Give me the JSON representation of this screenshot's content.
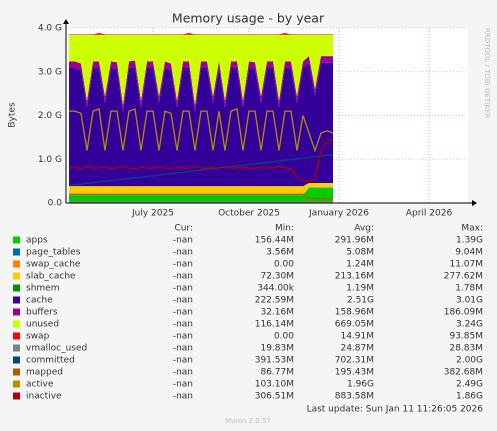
{
  "chart_data": {
    "type": "area",
    "title": "Memory usage - by year",
    "y_label": "Bytes",
    "side_note": "RRDTOOL / TOBI OETIKER",
    "last_update": "Last update: Sun Jan 11 11:26:05 2026",
    "footer": "Munin 2.0.57",
    "stat_headers": [
      "Cur:",
      "Min:",
      "Avg:",
      "Max:"
    ],
    "grid": true,
    "ylim": [
      0,
      4
    ],
    "yticks": [
      {
        "value": 0,
        "label": "0.0"
      },
      {
        "value": 1,
        "label": "1.0 G"
      },
      {
        "value": 2,
        "label": "2.0 G"
      },
      {
        "value": 3,
        "label": "3.0 G"
      },
      {
        "value": 4,
        "label": "4.0 G"
      }
    ],
    "categories": [
      null,
      null,
      null,
      null,
      null,
      null,
      null,
      null,
      null,
      null,
      null,
      null,
      null,
      null,
      "July 2025",
      null,
      null,
      null,
      null,
      null,
      null,
      null,
      null,
      null,
      null,
      null,
      null,
      null,
      null,
      null,
      "October 2025",
      null,
      null,
      null,
      null,
      null,
      null,
      null,
      null,
      null,
      null,
      null,
      null,
      null,
      null,
      "January 2026",
      null,
      null,
      null,
      null,
      null,
      null,
      null,
      null,
      null,
      null,
      null,
      null,
      null,
      null,
      "April 2026",
      null,
      null,
      null,
      null,
      null,
      null
    ],
    "series": [
      {
        "name": "apps",
        "color": "#00cc00",
        "style": "area",
        "stats": [
          "-nan",
          "156.44M",
          "291.96M",
          "1.39G"
        ],
        "values": [
          0.18,
          0.18,
          0.18,
          0.18,
          0.18,
          0.18,
          0.18,
          0.18,
          0.18,
          0.18,
          0.18,
          0.18,
          0.18,
          0.18,
          0.18,
          0.18,
          0.18,
          0.18,
          0.18,
          0.18,
          0.18,
          0.18,
          0.18,
          0.18,
          0.18,
          0.18,
          0.18,
          0.18,
          0.18,
          0.18,
          0.18,
          0.18,
          0.18,
          0.18,
          0.18,
          0.18,
          0.18,
          0.18,
          0.18,
          0.18,
          0.35,
          0.35,
          0.35,
          0.35,
          0.35,
          null,
          null,
          null,
          null,
          null,
          null,
          null,
          null,
          null,
          null,
          null,
          null,
          null,
          null,
          null,
          null,
          null,
          null,
          null,
          null,
          null,
          null
        ]
      },
      {
        "name": "page_tables",
        "color": "#0066b3",
        "style": "area",
        "stats": [
          "-nan",
          "3.56M",
          "5.08M",
          "9.04M"
        ],
        "values": [
          0.005,
          0.005,
          0.005,
          0.005,
          0.005,
          0.005,
          0.005,
          0.005,
          0.005,
          0.005,
          0.005,
          0.005,
          0.005,
          0.005,
          0.005,
          0.005,
          0.005,
          0.005,
          0.005,
          0.005,
          0.005,
          0.005,
          0.005,
          0.005,
          0.005,
          0.005,
          0.005,
          0.005,
          0.005,
          0.005,
          0.005,
          0.005,
          0.005,
          0.005,
          0.005,
          0.005,
          0.005,
          0.005,
          0.005,
          0.005,
          0.005,
          0.005,
          0.005,
          0.005,
          0.005,
          null,
          null,
          null,
          null,
          null,
          null,
          null,
          null,
          null,
          null,
          null,
          null,
          null,
          null,
          null,
          null,
          null,
          null,
          null,
          null,
          null,
          null
        ]
      },
      {
        "name": "swap_cache",
        "color": "#ff8000",
        "style": "area",
        "stats": [
          "-nan",
          "0.00",
          "1.24M",
          "11.07M"
        ],
        "values": [
          0.001,
          0.001,
          0.001,
          0.001,
          0.001,
          0.001,
          0.001,
          0.001,
          0.001,
          0.001,
          0.001,
          0.001,
          0.001,
          0.001,
          0.001,
          0.001,
          0.001,
          0.001,
          0.001,
          0.001,
          0.001,
          0.001,
          0.001,
          0.001,
          0.001,
          0.001,
          0.001,
          0.001,
          0.001,
          0.001,
          0.001,
          0.001,
          0.001,
          0.001,
          0.001,
          0.001,
          0.001,
          0.001,
          0.001,
          0.001,
          0.001,
          0.001,
          0.001,
          0.001,
          0.001,
          null,
          null,
          null,
          null,
          null,
          null,
          null,
          null,
          null,
          null,
          null,
          null,
          null,
          null,
          null,
          null,
          null,
          null,
          null,
          null,
          null,
          null
        ]
      },
      {
        "name": "slab_cache",
        "color": "#ffcc00",
        "style": "area",
        "stats": [
          "-nan",
          "72.30M",
          "213.16M",
          "277.62M"
        ],
        "values": [
          0.2,
          0.2,
          0.2,
          0.2,
          0.2,
          0.2,
          0.2,
          0.2,
          0.2,
          0.2,
          0.2,
          0.2,
          0.2,
          0.2,
          0.2,
          0.2,
          0.2,
          0.2,
          0.2,
          0.2,
          0.2,
          0.2,
          0.2,
          0.2,
          0.2,
          0.2,
          0.2,
          0.2,
          0.2,
          0.2,
          0.2,
          0.2,
          0.2,
          0.2,
          0.2,
          0.2,
          0.2,
          0.2,
          0.2,
          0.2,
          0.1,
          0.1,
          0.1,
          0.1,
          0.1,
          null,
          null,
          null,
          null,
          null,
          null,
          null,
          null,
          null,
          null,
          null,
          null,
          null,
          null,
          null,
          null,
          null,
          null,
          null,
          null,
          null,
          null
        ]
      },
      {
        "name": "shmem",
        "color": "#008f00",
        "style": "area",
        "stats": [
          "-nan",
          "344.00k",
          "1.19M",
          "1.78M"
        ],
        "values": [
          0.001,
          0.001,
          0.001,
          0.001,
          0.001,
          0.001,
          0.001,
          0.001,
          0.001,
          0.001,
          0.001,
          0.001,
          0.001,
          0.001,
          0.001,
          0.001,
          0.001,
          0.001,
          0.001,
          0.001,
          0.001,
          0.001,
          0.001,
          0.001,
          0.001,
          0.001,
          0.001,
          0.001,
          0.001,
          0.001,
          0.001,
          0.001,
          0.001,
          0.001,
          0.001,
          0.001,
          0.001,
          0.001,
          0.001,
          0.001,
          0.001,
          0.001,
          0.001,
          0.001,
          0.001,
          null,
          null,
          null,
          null,
          null,
          null,
          null,
          null,
          null,
          null,
          null,
          null,
          null,
          null,
          null,
          null,
          null,
          null,
          null,
          null,
          null,
          null
        ]
      },
      {
        "name": "cache",
        "color": "#330099",
        "style": "area",
        "stats": [
          "-nan",
          "222.59M",
          "2.51G",
          "3.01G"
        ],
        "values": [
          2.7,
          2.7,
          2.65,
          1.8,
          2.7,
          2.7,
          1.9,
          2.7,
          2.68,
          1.7,
          2.7,
          2.72,
          1.8,
          2.7,
          2.7,
          1.9,
          2.7,
          2.65,
          1.8,
          2.7,
          2.7,
          1.7,
          2.7,
          2.7,
          1.9,
          2.7,
          1.8,
          2.7,
          2.7,
          1.8,
          2.7,
          2.68,
          1.9,
          2.7,
          2.7,
          1.8,
          2.7,
          2.7,
          1.9,
          2.7,
          2.75,
          2.0,
          2.75,
          2.75,
          2.75,
          null,
          null,
          null,
          null,
          null,
          null,
          null,
          null,
          null,
          null,
          null,
          null,
          null,
          null,
          null,
          null,
          null,
          null,
          null,
          null,
          null,
          null
        ]
      },
      {
        "name": "buffers",
        "color": "#990099",
        "style": "area",
        "stats": [
          "-nan",
          "32.16M",
          "158.96M",
          "186.09M"
        ],
        "values": [
          0.15,
          0.15,
          0.15,
          0.15,
          0.15,
          0.15,
          0.15,
          0.15,
          0.15,
          0.15,
          0.15,
          0.15,
          0.15,
          0.15,
          0.15,
          0.15,
          0.15,
          0.15,
          0.15,
          0.15,
          0.15,
          0.15,
          0.15,
          0.15,
          0.15,
          0.15,
          0.15,
          0.15,
          0.15,
          0.15,
          0.15,
          0.15,
          0.15,
          0.15,
          0.15,
          0.15,
          0.15,
          0.15,
          0.15,
          0.15,
          0.15,
          0.15,
          0.15,
          0.15,
          0.15,
          null,
          null,
          null,
          null,
          null,
          null,
          null,
          null,
          null,
          null,
          null,
          null,
          null,
          null,
          null,
          null,
          null,
          null,
          null,
          null,
          null,
          null
        ]
      },
      {
        "name": "unused",
        "color": "#ccff00",
        "style": "area",
        "stats": [
          "-nan",
          "116.14M",
          "669.05M",
          "3.24G"
        ],
        "values": [
          0.61,
          0.61,
          0.66,
          1.51,
          0.61,
          0.61,
          1.41,
          0.61,
          0.63,
          1.61,
          0.61,
          0.59,
          1.51,
          0.61,
          0.61,
          1.41,
          0.61,
          0.66,
          1.51,
          0.61,
          0.61,
          1.61,
          0.61,
          0.61,
          1.41,
          0.61,
          1.51,
          0.61,
          0.61,
          1.51,
          0.61,
          0.63,
          1.41,
          0.61,
          0.61,
          1.51,
          0.61,
          0.61,
          1.41,
          0.61,
          0.49,
          1.24,
          0.49,
          0.49,
          0.49,
          null,
          null,
          null,
          null,
          null,
          null,
          null,
          null,
          null,
          null,
          null,
          null,
          null,
          null,
          null,
          null,
          null,
          null,
          null,
          null,
          null,
          null
        ]
      },
      {
        "name": "swap",
        "color": "#ff0000",
        "style": "area",
        "stats": [
          "-nan",
          "0.00",
          "14.91M",
          "93.85M"
        ],
        "values": [
          0.01,
          0.01,
          0.01,
          0.01,
          0.01,
          0.04,
          0.01,
          0.01,
          0.01,
          0.01,
          0.01,
          0.01,
          0.01,
          0.01,
          0.01,
          0.01,
          0.01,
          0.01,
          0.01,
          0.01,
          0.04,
          0.01,
          0.01,
          0.01,
          0.01,
          0.01,
          0.01,
          0.01,
          0.01,
          0.01,
          0.01,
          0.01,
          0.01,
          0.01,
          0.01,
          0.01,
          0.04,
          0.01,
          0.01,
          0.01,
          0.01,
          0.01,
          0.01,
          0.01,
          0.01,
          null,
          null,
          null,
          null,
          null,
          null,
          null,
          null,
          null,
          null,
          null,
          null,
          null,
          null,
          null,
          null,
          null,
          null,
          null,
          null,
          null,
          null
        ]
      },
      {
        "name": "vmalloc_used",
        "color": "#808080",
        "style": "line",
        "stats": [
          "-nan",
          "19.83M",
          "24.87M",
          "28.83M"
        ],
        "values": [
          0.025,
          0.025,
          0.025,
          0.025,
          0.025,
          0.025,
          0.025,
          0.025,
          0.025,
          0.025,
          0.025,
          0.025,
          0.025,
          0.025,
          0.025,
          0.025,
          0.025,
          0.025,
          0.025,
          0.025,
          0.025,
          0.025,
          0.025,
          0.025,
          0.025,
          0.025,
          0.025,
          0.025,
          0.025,
          0.025,
          0.025,
          0.025,
          0.025,
          0.025,
          0.025,
          0.025,
          0.025,
          0.025,
          0.025,
          0.025,
          0.025,
          0.025,
          0.025,
          0.025,
          0.025,
          null,
          null,
          null,
          null,
          null,
          null,
          null,
          null,
          null,
          null,
          null,
          null,
          null,
          null,
          null,
          null,
          null,
          null,
          null,
          null,
          null,
          null
        ]
      },
      {
        "name": "committed",
        "color": "#00487d",
        "style": "line",
        "stats": [
          "-nan",
          "391.53M",
          "702.31M",
          "2.00G"
        ],
        "values": [
          0.4,
          0.42,
          0.43,
          0.45,
          0.46,
          0.48,
          0.5,
          0.51,
          0.53,
          0.54,
          0.56,
          0.58,
          0.59,
          0.61,
          0.62,
          0.64,
          0.66,
          0.67,
          0.69,
          0.7,
          0.72,
          0.74,
          0.75,
          0.77,
          0.78,
          0.8,
          0.82,
          0.83,
          0.85,
          0.86,
          0.88,
          0.9,
          0.91,
          0.93,
          0.94,
          0.96,
          0.98,
          0.99,
          1.01,
          1.02,
          1.04,
          1.06,
          1.07,
          1.09,
          1.1,
          null,
          null,
          null,
          null,
          null,
          null,
          null,
          null,
          null,
          null,
          null,
          null,
          null,
          null,
          null,
          null,
          null,
          null,
          null,
          null,
          null,
          null
        ]
      },
      {
        "name": "mapped",
        "color": "#b35a00",
        "style": "line",
        "stats": [
          "-nan",
          "86.77M",
          "195.43M",
          "382.68M"
        ],
        "values": [
          0.2,
          0.2,
          0.2,
          0.2,
          0.2,
          0.2,
          0.2,
          0.2,
          0.2,
          0.2,
          0.2,
          0.2,
          0.2,
          0.2,
          0.2,
          0.2,
          0.2,
          0.2,
          0.2,
          0.2,
          0.2,
          0.2,
          0.2,
          0.2,
          0.2,
          0.2,
          0.2,
          0.2,
          0.2,
          0.2,
          0.2,
          0.2,
          0.2,
          0.2,
          0.2,
          0.2,
          0.2,
          0.2,
          0.2,
          0.2,
          0.1,
          0.1,
          0.1,
          0.1,
          0.1,
          null,
          null,
          null,
          null,
          null,
          null,
          null,
          null,
          null,
          null,
          null,
          null,
          null,
          null,
          null,
          null,
          null,
          null,
          null,
          null,
          null,
          null
        ]
      },
      {
        "name": "active",
        "color": "#b38f00",
        "style": "line",
        "stats": [
          "-nan",
          "103.10M",
          "1.96G",
          "2.49G"
        ],
        "values": [
          2.1,
          2.1,
          2.05,
          1.2,
          2.1,
          2.15,
          1.2,
          2.1,
          2.1,
          1.2,
          2.1,
          2.15,
          1.2,
          2.1,
          2.1,
          1.2,
          2.1,
          2.05,
          1.2,
          2.1,
          2.1,
          1.2,
          2.1,
          2.1,
          1.2,
          2.1,
          1.2,
          2.1,
          2.15,
          1.2,
          2.1,
          2.1,
          1.2,
          2.1,
          2.1,
          1.2,
          2.1,
          2.1,
          1.2,
          2.0,
          1.6,
          1.2,
          1.6,
          1.65,
          1.6,
          null,
          null,
          null,
          null,
          null,
          null,
          null,
          null,
          null,
          null,
          null,
          null,
          null,
          null,
          null,
          null,
          null,
          null,
          null,
          null,
          null,
          null
        ]
      },
      {
        "name": "inactive",
        "color": "#b30000",
        "style": "line",
        "stats": [
          "-nan",
          "306.51M",
          "883.58M",
          "1.86G"
        ],
        "values": [
          0.8,
          0.82,
          0.78,
          0.85,
          0.8,
          0.8,
          0.83,
          0.79,
          0.8,
          0.85,
          0.8,
          0.78,
          0.82,
          0.8,
          0.8,
          0.84,
          0.8,
          0.79,
          0.83,
          0.8,
          0.8,
          0.85,
          0.8,
          0.78,
          0.82,
          0.8,
          0.84,
          0.8,
          0.8,
          0.83,
          0.8,
          0.79,
          0.82,
          0.8,
          0.8,
          0.84,
          0.8,
          0.78,
          0.6,
          0.5,
          0.5,
          0.55,
          1.2,
          1.4,
          1.45,
          null,
          null,
          null,
          null,
          null,
          null,
          null,
          null,
          null,
          null,
          null,
          null,
          null,
          null,
          null,
          null,
          null,
          null,
          null,
          null,
          null,
          null
        ]
      }
    ]
  }
}
